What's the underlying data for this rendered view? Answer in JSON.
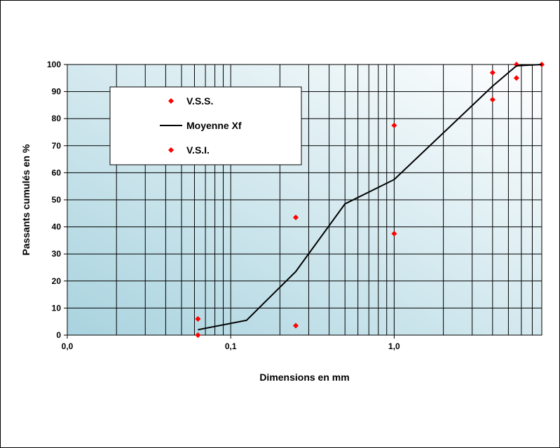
{
  "chart_data": {
    "type": "scatter",
    "xlabel": "Dimensions en mm",
    "ylabel": "Passants cumulés en %",
    "x_scale": "log",
    "xlim": [
      0.01,
      8
    ],
    "ylim": [
      0,
      100
    ],
    "x_ticks": [
      {
        "value": 0.01,
        "label": "0,0"
      },
      {
        "value": 0.1,
        "label": "0,1"
      },
      {
        "value": 1,
        "label": "1,0"
      }
    ],
    "y_ticks": [
      0,
      10,
      20,
      30,
      40,
      50,
      60,
      70,
      80,
      90,
      100
    ],
    "grid": true,
    "legend_position": "top-left",
    "series": [
      {
        "name": "V.S.S.",
        "kind": "markers",
        "color": "#ff0000",
        "marker": "diamond",
        "points": [
          {
            "x": 0.063,
            "y": 6
          },
          {
            "x": 0.25,
            "y": 43.5
          },
          {
            "x": 1,
            "y": 77.5
          },
          {
            "x": 4,
            "y": 97
          },
          {
            "x": 5.6,
            "y": 100
          },
          {
            "x": 8,
            "y": 100
          }
        ]
      },
      {
        "name": "Moyenne Xf",
        "kind": "line",
        "color": "#000000",
        "points": [
          {
            "x": 0.063,
            "y": 2
          },
          {
            "x": 0.125,
            "y": 5.5
          },
          {
            "x": 0.25,
            "y": 23.5
          },
          {
            "x": 0.5,
            "y": 48.5
          },
          {
            "x": 1,
            "y": 57.5
          },
          {
            "x": 4,
            "y": 92
          },
          {
            "x": 5.6,
            "y": 99.5
          },
          {
            "x": 8,
            "y": 100
          }
        ]
      },
      {
        "name": "V.S.I.",
        "kind": "markers",
        "color": "#ff0000",
        "marker": "diamond",
        "points": [
          {
            "x": 0.063,
            "y": 0
          },
          {
            "x": 0.25,
            "y": 3.5
          },
          {
            "x": 1,
            "y": 37.5
          },
          {
            "x": 4,
            "y": 87
          },
          {
            "x": 5.6,
            "y": 95
          }
        ]
      }
    ],
    "colors": {
      "plot_bg_start": "#a9d3df",
      "plot_bg_end": "#ffffff",
      "grid": "#000000"
    }
  }
}
